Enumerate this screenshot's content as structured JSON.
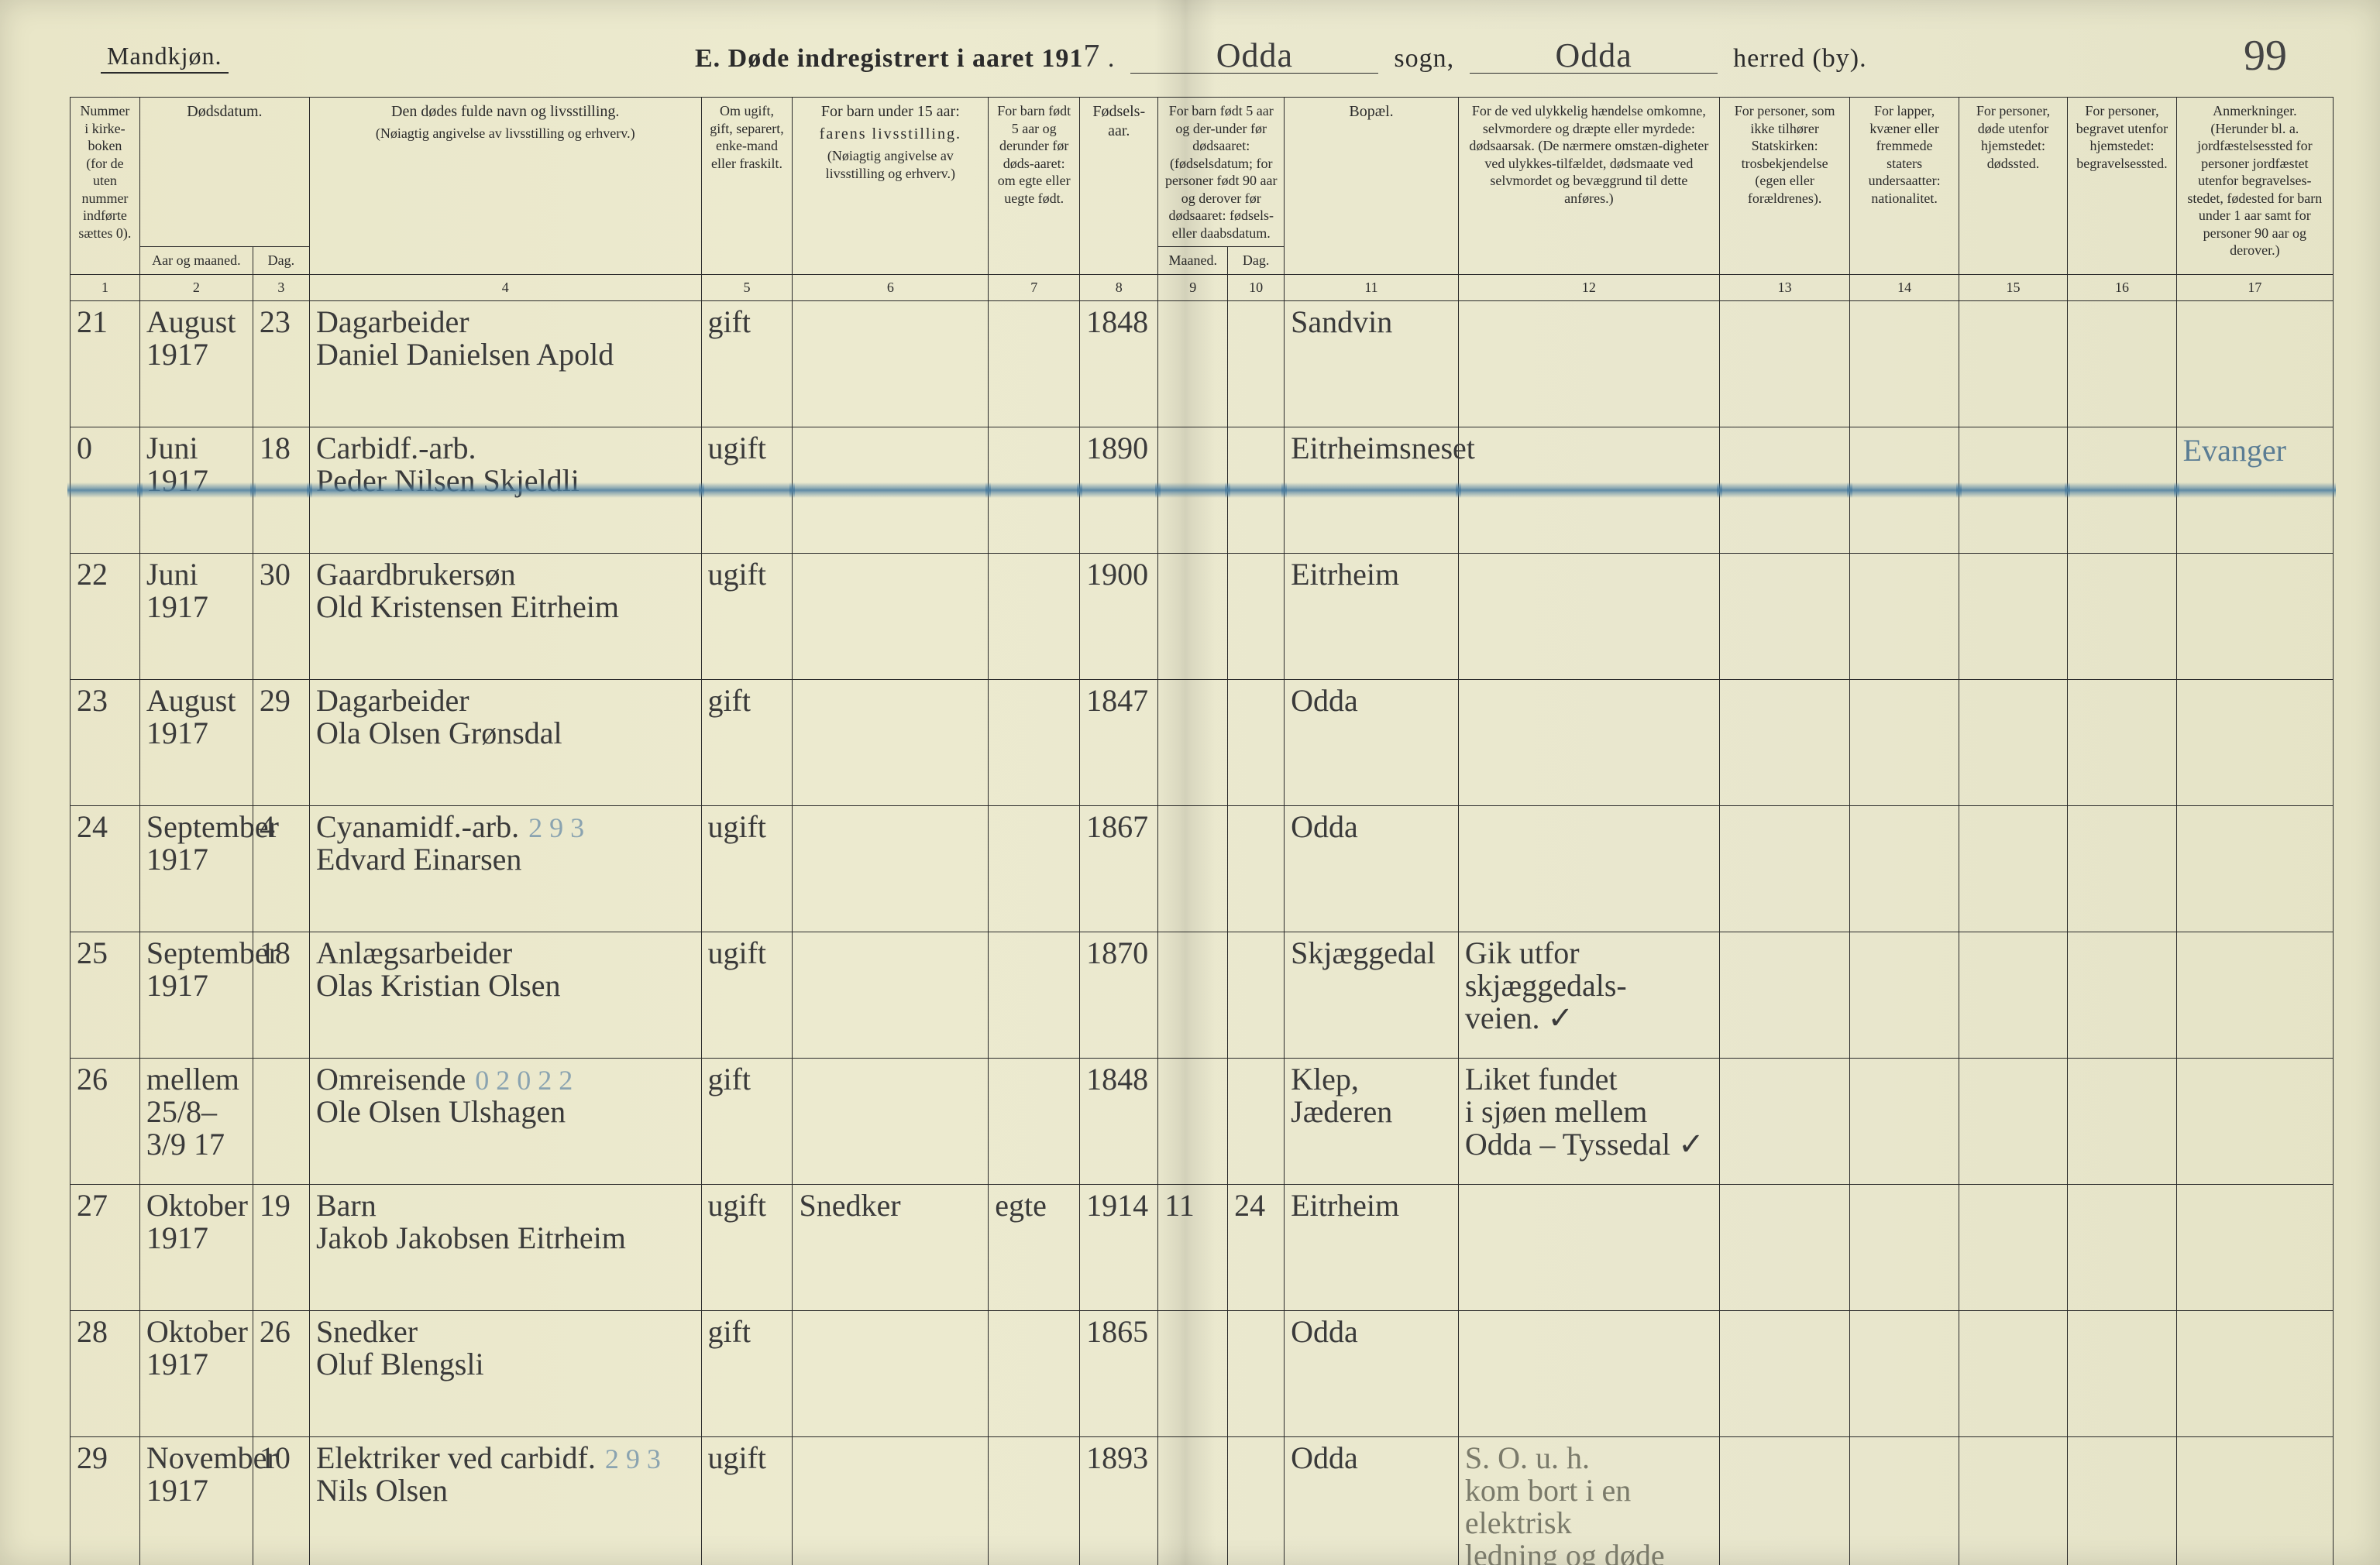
{
  "page_number": "99",
  "header": {
    "gender_label": "Mandkjøn.",
    "title_prefix": "E.  Døde indregistrert i aaret 191",
    "year_suffix": "7",
    "sogn_value": "Odda",
    "sogn_label": "sogn,",
    "herred_value": "Odda",
    "herred_label": "herred (by)."
  },
  "columns": {
    "c1": "Nummer i kirke-boken (for de uten nummer indførte sættes 0).",
    "c2_top": "Dødsdatum.",
    "c2a": "Aar og maaned.",
    "c2b": "Dag.",
    "c4a": "Den dødes fulde navn og livsstilling.",
    "c4b": "(Nøiagtig angivelse av livsstilling og erhverv.)",
    "c5": "Om ugift, gift, separert, enke-mand eller fraskilt.",
    "c6a": "For barn under 15 aar:",
    "c6b": "farens livsstilling.",
    "c6c": "(Nøiagtig angivelse av livsstilling og erhverv.)",
    "c7": "For barn født 5 aar og derunder før døds-aaret: om egte eller uegte født.",
    "c8": "Fødsels-aar.",
    "c9_top": "For barn født 5 aar og der-under før dødsaaret: (fødselsdatum; for personer født 90 aar og derover før dødsaaret: fødsels- eller daabsdatum.",
    "c9a": "Maaned.",
    "c9b": "Dag.",
    "c11": "Bopæl.",
    "c12": "For de ved ulykkelig hændelse omkomne, selvmordere og dræpte eller myrdede: dødsaarsak. (De nærmere omstæn-digheter ved ulykkes-tilfældet, dødsmaate ved selvmordet og bevæggrund til dette anføres.)",
    "c13": "For personer, som ikke tilhører Statskirken: trosbekjendelse (egen eller forældrenes).",
    "c14": "For lapper, kvæner eller fremmede staters undersaatter: nationalitet.",
    "c15": "For personer, døde utenfor hjemstedet: dødssted.",
    "c16": "For personer, begravet utenfor hjemstedet: begravelsessted.",
    "c17": "Anmerkninger. (Herunder bl. a. jordfæstelsessted for personer jordfæstet utenfor begravelses-stedet, fødested for barn under 1 aar samt for personer 90 aar og derover.)"
  },
  "colnums": [
    "1",
    "2",
    "3",
    "4",
    "5",
    "6",
    "7",
    "8",
    "9",
    "10",
    "11",
    "12",
    "13",
    "14",
    "15",
    "16",
    "17"
  ],
  "rows": [
    {
      "num": "21",
      "month": "August\n1917",
      "day": "23",
      "name": "Dagarbeider\nDaniel Danielsen Apold",
      "status": "gift",
      "parent": "",
      "legit": "",
      "birthyear": "1848",
      "bm": "",
      "bd": "",
      "residence": "Sandvin",
      "cause": "",
      "remarks": "",
      "struck": false
    },
    {
      "num": "0",
      "month": "Juni\n1917",
      "day": "18",
      "name": "Carbidf.-arb.\nPeder Nilsen Skjeldli",
      "status": "ugift",
      "parent": "",
      "legit": "",
      "birthyear": "1890",
      "bm": "",
      "bd": "",
      "residence": "Eitrheimsneset",
      "cause": "",
      "remarks": "Evanger",
      "struck": true
    },
    {
      "num": "22",
      "month": "Juni\n1917",
      "day": "30",
      "name": "Gaardbrukersøn\nOld Kristensen Eitrheim",
      "status": "ugift",
      "parent": "",
      "legit": "",
      "birthyear": "1900",
      "bm": "",
      "bd": "",
      "residence": "Eitrheim",
      "cause": "",
      "remarks": "",
      "struck": false
    },
    {
      "num": "23",
      "month": "August\n1917",
      "day": "29",
      "name": "Dagarbeider\nOla Olsen Grønsdal",
      "status": "gift",
      "parent": "",
      "legit": "",
      "birthyear": "1847",
      "bm": "",
      "bd": "",
      "residence": "Odda",
      "cause": "",
      "remarks": "",
      "struck": false
    },
    {
      "num": "24",
      "month": "September\n1917",
      "day": "4",
      "name": "Cyanamidf.-arb.\nEdvard Einarsen",
      "name_annot": "2 9 3",
      "status": "ugift",
      "parent": "",
      "legit": "",
      "birthyear": "1867",
      "bm": "",
      "bd": "",
      "residence": "Odda",
      "cause": "",
      "remarks": "",
      "struck": false
    },
    {
      "num": "25",
      "month": "September\n1917",
      "day": "18",
      "name": "Anlægsarbeider\nOlas Kristian Olsen",
      "status": "ugift",
      "parent": "",
      "legit": "",
      "birthyear": "1870",
      "bm": "",
      "bd": "",
      "residence": "Skjæggedal",
      "cause": "Gik utfor\nskjæggedals-\nveien.     ✓",
      "remarks": "",
      "struck": false
    },
    {
      "num": "26",
      "month": "mellem\n25/8–3/9 17",
      "day": "",
      "name": "Omreisende\nOle Olsen Ulshagen",
      "name_annot": "0 2 0 2  2",
      "status": "gift",
      "parent": "",
      "legit": "",
      "birthyear": "1848",
      "bm": "",
      "bd": "",
      "residence": "Klep,\nJæderen",
      "cause": "Liket fundet\ni sjøen mellem\nOdda – Tyssedal ✓",
      "remarks": "",
      "struck": false
    },
    {
      "num": "27",
      "month": "Oktober\n1917",
      "day": "19",
      "name": "Barn\nJakob Jakobsen Eitrheim",
      "status": "ugift",
      "parent": "Snedker",
      "legit": "egte",
      "birthyear": "1914",
      "bm": "11",
      "bd": "24",
      "residence": "Eitrheim",
      "cause": "",
      "remarks": "",
      "struck": false
    },
    {
      "num": "28",
      "month": "Oktober\n1917",
      "day": "26",
      "name": "Snedker\nOluf Blengsli",
      "status": "gift",
      "parent": "",
      "legit": "",
      "birthyear": "1865",
      "bm": "",
      "bd": "",
      "residence": "Odda",
      "cause": "",
      "remarks": "",
      "struck": false
    },
    {
      "num": "29",
      "month": "November\n1917",
      "day": "10",
      "name": "Elektriker ved carbidf.\nNils Olsen",
      "name_annot": "2 9 3",
      "status": "ugift",
      "parent": "",
      "legit": "",
      "birthyear": "1893",
      "bm": "",
      "bd": "",
      "residence": "Odda",
      "cause": "S. O. u. h.\nkom bort i en elektrisk\nledning og døde paa stedet",
      "remarks": "",
      "struck": false
    }
  ],
  "style": {
    "paper_bg": "#e9e7cc",
    "ink": "#2b2b2b",
    "handwriting_color": "#3a3a3a",
    "strike_color": "#5b7d94",
    "border_color": "#2b2b2b",
    "col_widths_pct": [
      3.2,
      5.2,
      2.6,
      18.0,
      4.2,
      9.0,
      4.2,
      3.6,
      3.2,
      2.6,
      8.0,
      12.0,
      6.0,
      5.0,
      5.0,
      5.0,
      7.2
    ]
  }
}
